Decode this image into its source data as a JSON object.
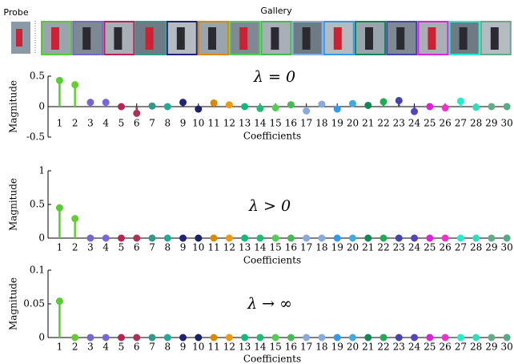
{
  "header": {
    "probe_label": "Probe",
    "gallery_label": "Gallery"
  },
  "chart_data": [
    {
      "type": "stem",
      "title": "λ = 0",
      "x_label": "Coefficients",
      "y_label": "Magnitude",
      "x": [
        1,
        2,
        3,
        4,
        5,
        6,
        7,
        8,
        9,
        10,
        11,
        12,
        13,
        14,
        15,
        16,
        17,
        18,
        19,
        20,
        21,
        22,
        23,
        24,
        25,
        26,
        27,
        28,
        29,
        30
      ],
      "values": [
        0.43,
        0.36,
        0.07,
        0.07,
        0,
        -0.11,
        0.01,
        0,
        0.07,
        -0.04,
        0.06,
        0.03,
        0,
        -0.03,
        -0.02,
        0.03,
        -0.07,
        0.04,
        -0.04,
        0.05,
        0.02,
        0.08,
        0.1,
        -0.08,
        0,
        -0.02,
        0.09,
        -0.01,
        0,
        0
      ],
      "colors": [
        "#55cc33",
        "#66cc33",
        "#7766cc",
        "#7766dd",
        "#bb2255",
        "#aa3355",
        "#339988",
        "#22aa99",
        "#222277",
        "#1a2266",
        "#dd8800",
        "#ee9911",
        "#11bb77",
        "#22bb77",
        "#55cc55",
        "#44bb55",
        "#88aadd",
        "#88aadd",
        "#3399ee",
        "#44aadd",
        "#118855",
        "#22aa55",
        "#4444aa",
        "#5544bb",
        "#dd22dd",
        "#ee33cc",
        "#22eecc",
        "#33ddbb",
        "#66aa88",
        "#55aa88"
      ],
      "xlim": [
        0.2,
        30.2
      ],
      "xticks": [
        1,
        2,
        3,
        4,
        5,
        6,
        7,
        8,
        9,
        10,
        11,
        12,
        13,
        14,
        15,
        16,
        17,
        18,
        19,
        20,
        21,
        22,
        23,
        24,
        25,
        26,
        27,
        28,
        29,
        30
      ],
      "ylim": [
        -0.5,
        0.5
      ],
      "yticks": [
        -0.5,
        0,
        0.5
      ]
    },
    {
      "type": "stem",
      "title": "λ > 0",
      "x_label": "Coefficients",
      "y_label": "Magnitude",
      "x": [
        1,
        2,
        3,
        4,
        5,
        6,
        7,
        8,
        9,
        10,
        11,
        12,
        13,
        14,
        15,
        16,
        17,
        18,
        19,
        20,
        21,
        22,
        23,
        24,
        25,
        26,
        27,
        28,
        29,
        30
      ],
      "values": [
        0.45,
        0.29,
        0,
        0,
        0,
        0,
        0,
        0,
        0,
        0,
        0,
        0,
        0,
        0,
        0,
        0,
        0,
        0,
        0,
        0,
        0,
        0,
        0,
        0,
        0,
        0,
        0,
        0,
        0,
        0
      ],
      "colors": [
        "#55cc33",
        "#66cc33",
        "#7766cc",
        "#7766dd",
        "#bb2255",
        "#aa3355",
        "#339988",
        "#22aa99",
        "#222277",
        "#1a2266",
        "#dd8800",
        "#ee9911",
        "#11bb77",
        "#22bb77",
        "#55cc55",
        "#44bb55",
        "#88aadd",
        "#88aadd",
        "#3399ee",
        "#44aadd",
        "#118855",
        "#22aa55",
        "#4444aa",
        "#5544bb",
        "#dd22dd",
        "#ee33cc",
        "#22eecc",
        "#33ddbb",
        "#66aa88",
        "#55aa88"
      ],
      "xlim": [
        0.2,
        30.2
      ],
      "xticks": [
        1,
        2,
        3,
        4,
        5,
        6,
        7,
        8,
        9,
        10,
        11,
        12,
        13,
        14,
        15,
        16,
        17,
        18,
        19,
        20,
        21,
        22,
        23,
        24,
        25,
        26,
        27,
        28,
        29,
        30
      ],
      "ylim": [
        0,
        1
      ],
      "yticks": [
        0,
        0.5,
        1
      ]
    },
    {
      "type": "stem",
      "title": "λ → ∞",
      "x_label": "Coefficients",
      "y_label": "Magnitude",
      "x": [
        1,
        2,
        3,
        4,
        5,
        6,
        7,
        8,
        9,
        10,
        11,
        12,
        13,
        14,
        15,
        16,
        17,
        18,
        19,
        20,
        21,
        22,
        23,
        24,
        25,
        26,
        27,
        28,
        29,
        30
      ],
      "values": [
        0.054,
        0,
        0,
        0,
        0,
        0,
        0,
        0,
        0,
        0,
        0,
        0,
        0,
        0,
        0,
        0,
        0,
        0,
        0,
        0,
        0,
        0,
        0,
        0,
        0,
        0,
        0,
        0,
        0,
        0
      ],
      "colors": [
        "#55cc33",
        "#66cc33",
        "#7766cc",
        "#7766dd",
        "#bb2255",
        "#aa3355",
        "#339988",
        "#22aa99",
        "#222277",
        "#1a2266",
        "#dd8800",
        "#ee9911",
        "#11bb77",
        "#22bb77",
        "#55cc55",
        "#44bb55",
        "#88aadd",
        "#88aadd",
        "#3399ee",
        "#44aadd",
        "#118855",
        "#22aa55",
        "#4444aa",
        "#5544bb",
        "#dd22dd",
        "#ee33cc",
        "#22eecc",
        "#33ddbb",
        "#66aa88",
        "#55aa88"
      ],
      "xlim": [
        0.2,
        30.2
      ],
      "xticks": [
        1,
        2,
        3,
        4,
        5,
        6,
        7,
        8,
        9,
        10,
        11,
        12,
        13,
        14,
        15,
        16,
        17,
        18,
        19,
        20,
        21,
        22,
        23,
        24,
        25,
        26,
        27,
        28,
        29,
        30
      ],
      "ylim": [
        0,
        0.1
      ],
      "yticks": [
        0,
        0.05,
        0.1
      ]
    }
  ]
}
